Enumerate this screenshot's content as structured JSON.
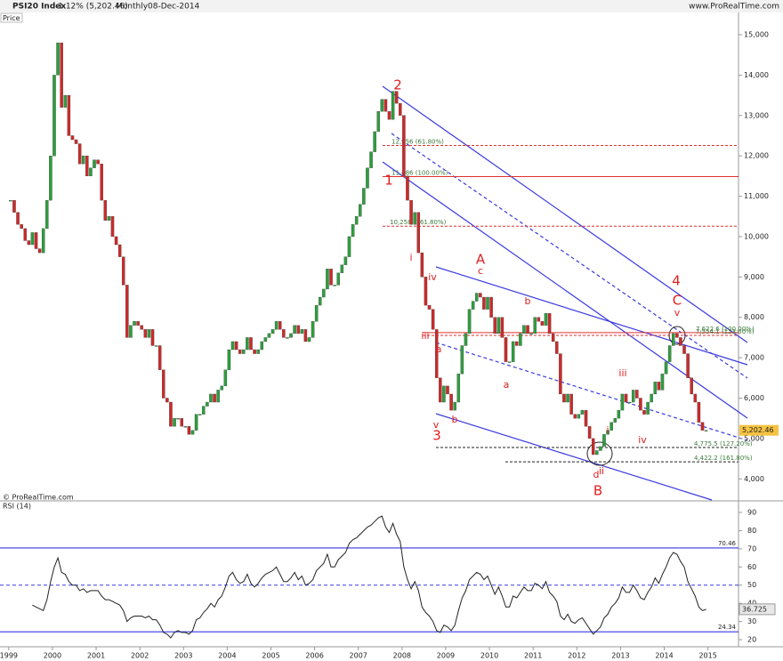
{
  "header": {
    "site": "www.ProRealTime.com",
    "copyright": "© ProRealTime.com"
  },
  "chart_data": [
    {
      "type": "candlestick",
      "title": "PSI20 Index",
      "change": "-1.12% (5,202.46)",
      "period": "Monthly",
      "date": "08-Dec-2014",
      "panel_label": "Price",
      "up_color": "#2e9e3e",
      "down_color": "#cc2a2a",
      "values": [
        10900,
        10600,
        10300,
        10200,
        9900,
        9800,
        10100,
        9700,
        9600,
        10200,
        10900,
        12000,
        14000,
        14800,
        13200,
        13500,
        12500,
        12400,
        12300,
        11800,
        12000,
        11500,
        11700,
        11900,
        11800,
        10900,
        10400,
        10500,
        10000,
        9800,
        9500,
        8800,
        7500,
        7800,
        7900,
        7800,
        7700,
        7500,
        7700,
        7300,
        7300,
        6700,
        6000,
        5900,
        5300,
        5500,
        5500,
        5300,
        5300,
        5100,
        5200,
        5600,
        5600,
        5800,
        5900,
        6100,
        5900,
        6200,
        6300,
        6700,
        7200,
        7400,
        7200,
        7100,
        7200,
        7500,
        7200,
        7100,
        7200,
        7400,
        7500,
        7600,
        7700,
        7900,
        7700,
        7500,
        7500,
        7600,
        7800,
        7600,
        7700,
        7400,
        7500,
        7900,
        8300,
        8500,
        8700,
        9200,
        8800,
        8800,
        9100,
        9300,
        9500,
        10000,
        10300,
        10500,
        10800,
        11200,
        11700,
        12100,
        12600,
        13100,
        13400,
        13100,
        12900,
        13600,
        13300,
        13000,
        11500,
        10900,
        10300,
        10600,
        9600,
        9000,
        8300,
        8200,
        7700,
        6500,
        5900,
        6300,
        6100,
        5700,
        5900,
        6600,
        7300,
        7600,
        8200,
        8400,
        8600,
        8500,
        8200,
        8500,
        8000,
        7600,
        8000,
        7500,
        6900,
        6900,
        7400,
        7300,
        7600,
        7800,
        7600,
        7600,
        8000,
        7900,
        7800,
        8100,
        7600,
        7400,
        7100,
        6100,
        5900,
        6100,
        5600,
        5500,
        5600,
        5700,
        5300,
        5000,
        4600,
        4700,
        4800,
        5100,
        5200,
        5400,
        5500,
        5700,
        6100,
        5900,
        5900,
        6200,
        6000,
        5700,
        5600,
        5900,
        6100,
        6400,
        6200,
        6600,
        6900,
        7300,
        7600,
        7500,
        7300,
        7100,
        6500,
        6100,
        5900,
        5400,
        5200,
        5202.46
      ],
      "ylim": [
        3609,
        15309
      ],
      "yticks": [
        {
          "value": 4000,
          "label": "4,000"
        },
        {
          "value": 5000,
          "label": "5,000"
        },
        {
          "value": 6000,
          "label": "6,000"
        },
        {
          "value": 7000,
          "label": "7,000"
        },
        {
          "value": 8000,
          "label": "8,000"
        },
        {
          "value": 9000,
          "label": "9,000"
        },
        {
          "value": 10000,
          "label": "10,000"
        },
        {
          "value": 11000,
          "label": "11,000"
        },
        {
          "value": 12000,
          "label": "12,000"
        },
        {
          "value": 13000,
          "label": "13,000"
        },
        {
          "value": 14000,
          "label": "14,000"
        },
        {
          "value": 15000,
          "label": "15,000"
        }
      ],
      "last_price": {
        "value": 5202.46,
        "label": "5,202.46"
      },
      "fib_levels": [
        {
          "value": 12256,
          "label": "12,256 (61.80%)",
          "color": "#e03030",
          "dashed": true
        },
        {
          "value": 11486,
          "label": "11,486 (100.00%)",
          "color": "#e03030",
          "dashed": false
        },
        {
          "value": 10258,
          "label": "10,258 (161.80%)",
          "color": "#e03030",
          "dashed": true
        },
        {
          "value": 7622.6,
          "label": "7,622.6 (100.00%)",
          "color": "#e03030",
          "dashed": false
        },
        {
          "value": 7554.1,
          "label": "7,554.1 (123.60%)",
          "color": "#e03030",
          "dashed": true
        },
        {
          "value": 4775.5,
          "label": "4,775.5 (127.20%)",
          "color": "#222222",
          "dashed": true
        },
        {
          "value": 4422.2,
          "label": "4,422.2 (161.80%)",
          "color": "#222222",
          "dashed": true
        }
      ],
      "annotations": [
        "2",
        "1",
        "3",
        "A",
        "B",
        "4",
        "C",
        "i",
        "iv",
        "iii",
        "v",
        "a",
        "b",
        "c",
        "a",
        "b",
        "d",
        "ii",
        "i",
        "iii",
        "iv",
        "v"
      ]
    },
    {
      "type": "line",
      "title": "RSI (14)",
      "color": "#222222",
      "level_color": "#3a3ae0",
      "values": [
        null,
        null,
        null,
        null,
        null,
        null,
        39,
        38,
        37,
        36,
        42,
        52,
        60,
        65,
        57,
        56,
        52,
        50,
        50,
        47,
        48,
        46,
        47,
        47,
        47,
        44,
        42,
        42,
        41,
        40,
        39,
        36,
        30,
        32,
        33,
        33,
        33,
        32,
        33,
        31,
        31,
        28,
        24,
        23,
        21,
        24,
        25,
        24,
        24,
        23,
        25,
        31,
        32,
        35,
        37,
        40,
        38,
        42,
        44,
        49,
        55,
        57,
        53,
        51,
        52,
        56,
        51,
        49,
        51,
        54,
        56,
        57,
        58,
        60,
        56,
        52,
        52,
        54,
        57,
        53,
        55,
        50,
        51,
        53,
        58,
        60,
        62,
        67,
        60,
        60,
        64,
        66,
        68,
        73,
        75,
        76,
        78,
        80,
        82,
        83,
        85,
        87,
        88,
        82,
        79,
        84,
        78,
        74,
        60,
        53,
        48,
        52,
        47,
        38,
        35,
        33,
        30,
        25,
        24,
        28,
        27,
        25,
        28,
        36,
        43,
        47,
        53,
        55,
        57,
        56,
        53,
        55,
        50,
        45,
        49,
        44,
        38,
        38,
        44,
        43,
        46,
        49,
        47,
        47,
        51,
        50,
        48,
        52,
        46,
        44,
        41,
        33,
        31,
        34,
        30,
        29,
        31,
        32,
        29,
        26,
        23,
        25,
        27,
        32,
        34,
        38,
        40,
        43,
        49,
        46,
        46,
        50,
        47,
        43,
        42,
        46,
        49,
        54,
        51,
        56,
        60,
        65,
        68,
        67,
        63,
        60,
        52,
        48,
        44,
        38,
        36,
        36.725
      ],
      "ylim": [
        16.1,
        95.4
      ],
      "yticks": [
        20,
        30,
        40,
        50,
        60,
        70,
        80,
        90
      ],
      "levels": [
        70.46,
        24.34
      ],
      "dashed_levels": [
        50
      ],
      "xlim": [
        1998.8,
        2015.7
      ],
      "xticks": [
        1999,
        2000,
        2001,
        2002,
        2003,
        2004,
        2005,
        2006,
        2007,
        2008,
        2009,
        2010,
        2011,
        2012,
        2013,
        2014,
        2015
      ]
    }
  ]
}
